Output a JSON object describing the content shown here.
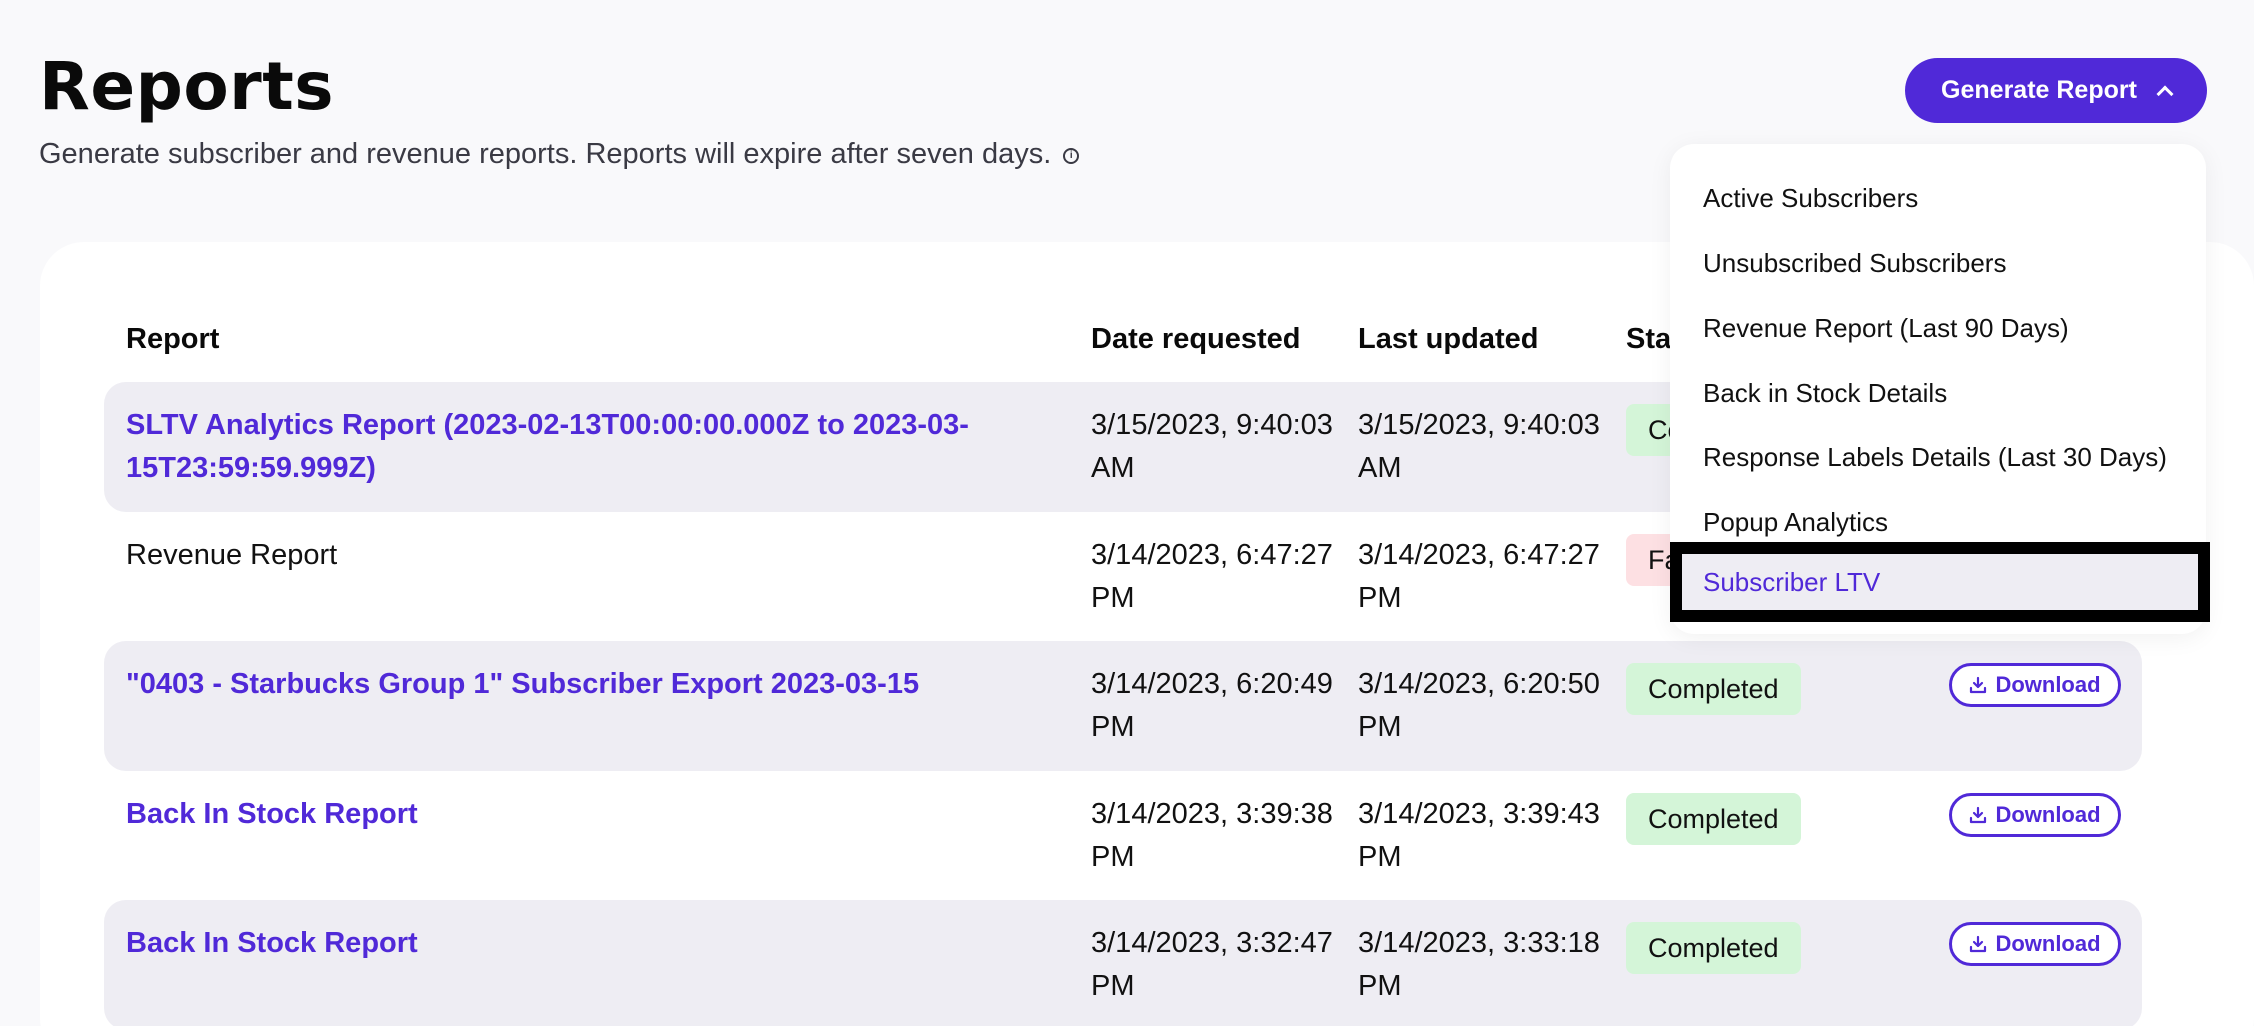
{
  "header": {
    "title": "Reports",
    "subtitle": "Generate subscriber and revenue reports. Reports will expire after seven days.",
    "generate_button": "Generate Report"
  },
  "table": {
    "columns": [
      "Report",
      "Date requested",
      "Last updated",
      "Sta"
    ],
    "rows": [
      {
        "report": "SLTV Analytics Report (2023-02-13T00:00:00.000Z to 2023-03-15T23:59:59.999Z)",
        "date_requested": "3/15/2023, 9:40:03 AM",
        "last_updated": "3/15/2023, 9:40:03 AM",
        "status": "Co",
        "download": ""
      },
      {
        "report": "Revenue Report",
        "date_requested": "3/14/2023, 6:47:27 PM",
        "last_updated": "3/14/2023, 6:47:27 PM",
        "status": "Fa",
        "download": ""
      },
      {
        "report": "\"0403 - Starbucks Group 1\" Subscriber Export 2023-03-15",
        "date_requested": "3/14/2023, 6:20:49 PM",
        "last_updated": "3/14/2023, 6:20:50 PM",
        "status": "Completed",
        "download": "Download"
      },
      {
        "report": "Back In Stock Report",
        "date_requested": "3/14/2023, 3:39:38 PM",
        "last_updated": "3/14/2023, 3:39:43 PM",
        "status": "Completed",
        "download": "Download"
      },
      {
        "report": "Back In Stock Report",
        "date_requested": "3/14/2023, 3:32:47 PM",
        "last_updated": "3/14/2023, 3:33:18 PM",
        "status": "Completed",
        "download": "Download"
      }
    ]
  },
  "dropdown": {
    "items": [
      "Active Subscribers",
      "Unsubscribed Subscribers",
      "Revenue Report (Last 90 Days)",
      "Back in Stock Details",
      "Response Labels Details (Last 30 Days)",
      "Popup Analytics",
      "Subscriber LTV"
    ],
    "selected": "Subscriber LTV"
  },
  "colors": {
    "accent": "#5029d8",
    "completed_bg": "#d4f5d8",
    "failed_bg": "#fde0e3",
    "row_shade": "#eeedf3"
  }
}
